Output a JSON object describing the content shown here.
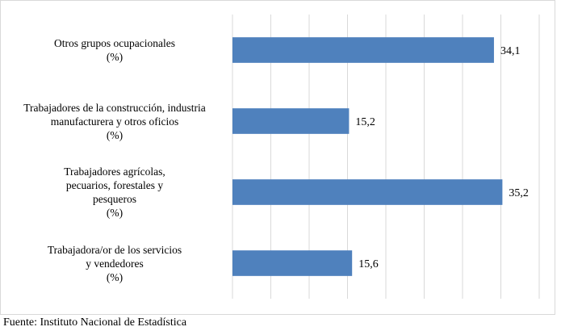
{
  "chart_data": {
    "type": "bar",
    "orientation": "horizontal",
    "categories": [
      [
        "Otros grupos ocupacionales",
        "(%)"
      ],
      [
        "Trabajadores de la construcción, industria",
        "manufacturera y otros oficios",
        "(%)"
      ],
      [
        "Trabajadores agrícolas,",
        "pecuarios, forestales y",
        "pesqueros",
        "(%)"
      ],
      [
        "Trabajadora/or de los servicios",
        "y vendedores",
        "(%)"
      ]
    ],
    "values": [
      34.1,
      15.2,
      35.2,
      15.6
    ],
    "value_labels": [
      "34,1",
      "15,2",
      "35,2",
      "15,6"
    ],
    "xlim": [
      0,
      40
    ],
    "grid": true,
    "bar_color": "#4f81bd",
    "title": "",
    "xlabel": "",
    "ylabel": ""
  },
  "source": "Fuente: Instituto Nacional de Estadística"
}
